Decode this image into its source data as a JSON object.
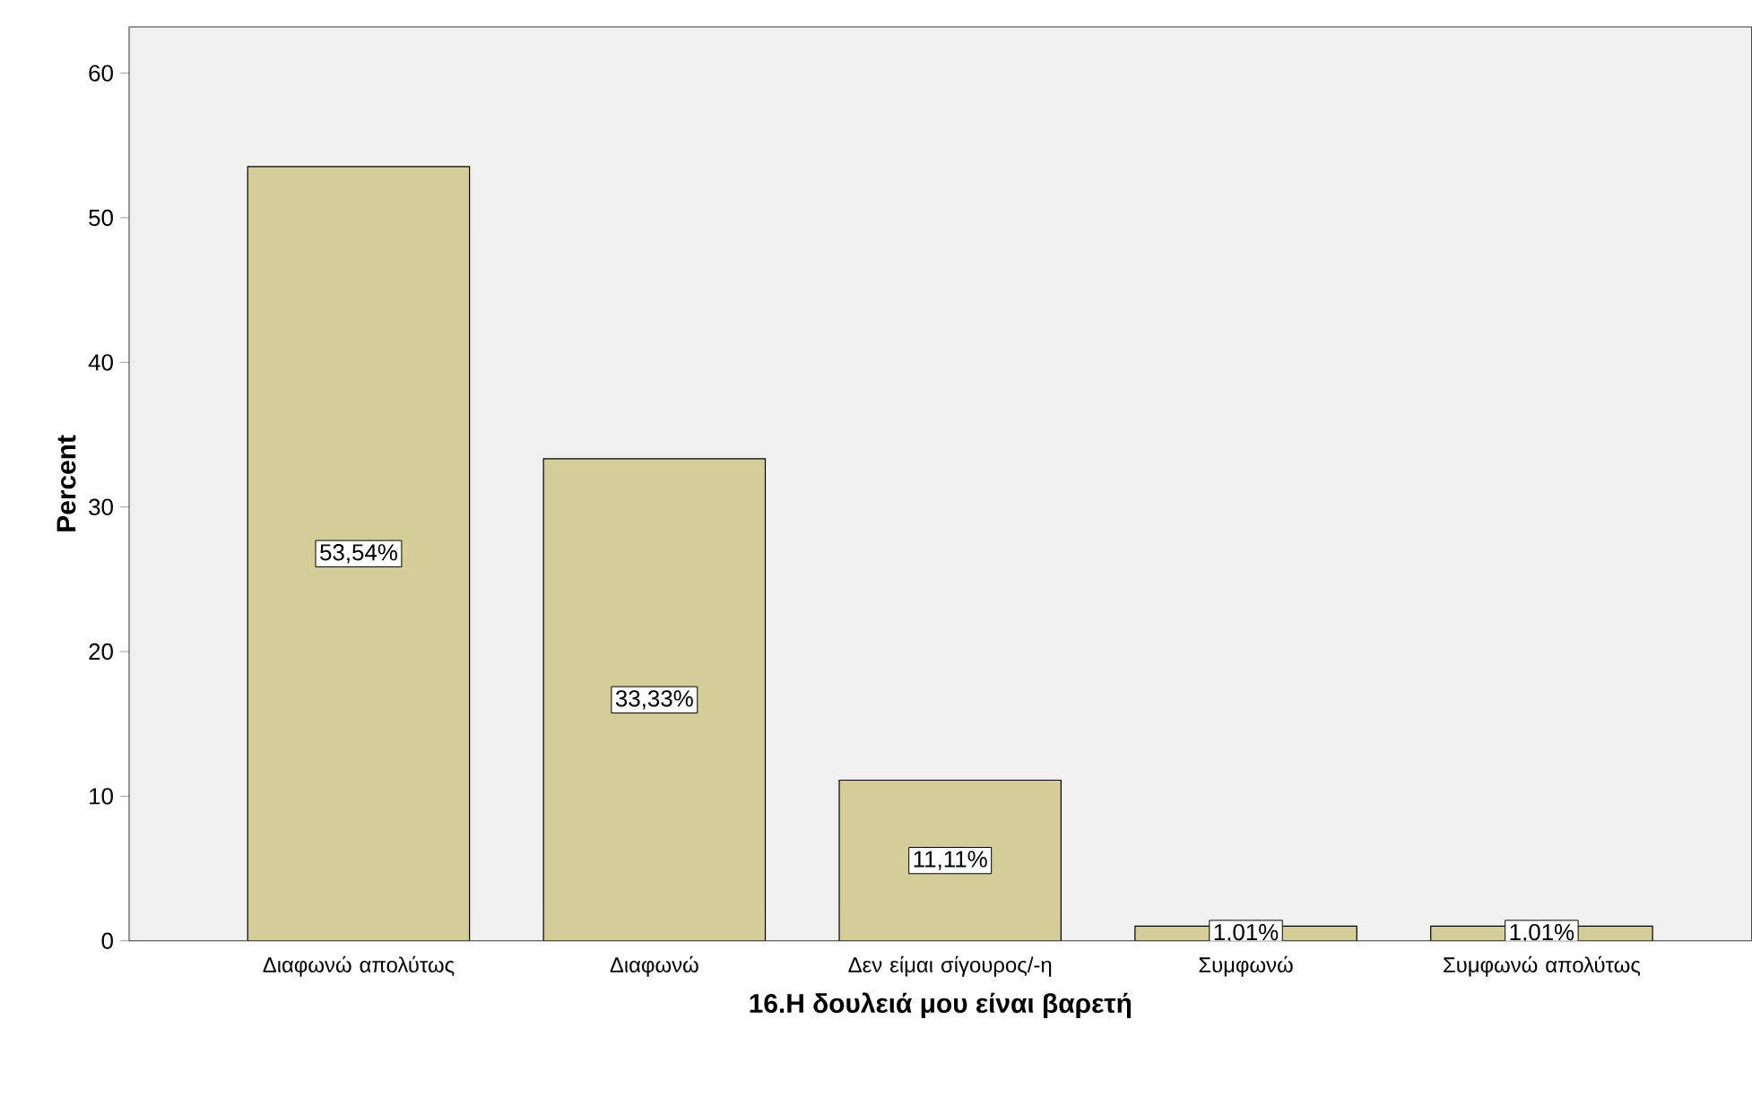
{
  "chart_data": {
    "type": "bar",
    "xlabel": "16.Η δουλειά μου είναι βαρετή",
    "ylabel": "Percent",
    "categories": [
      "Διαφωνώ απολύτως",
      "Διαφωνώ",
      "Δεν είμαι σίγουρος/-η",
      "Συμφωνώ",
      "Συμφωνώ απολύτως"
    ],
    "values": [
      53.54,
      33.33,
      11.11,
      1.01,
      1.01
    ],
    "value_labels": [
      "53,54%",
      "33,33%",
      "11,11%",
      "1,01%",
      "1,01%"
    ],
    "color": "#d3ce97",
    "ylim": [
      0,
      63.2
    ],
    "yticks": [
      0,
      10,
      20,
      30,
      40,
      50,
      60
    ]
  }
}
